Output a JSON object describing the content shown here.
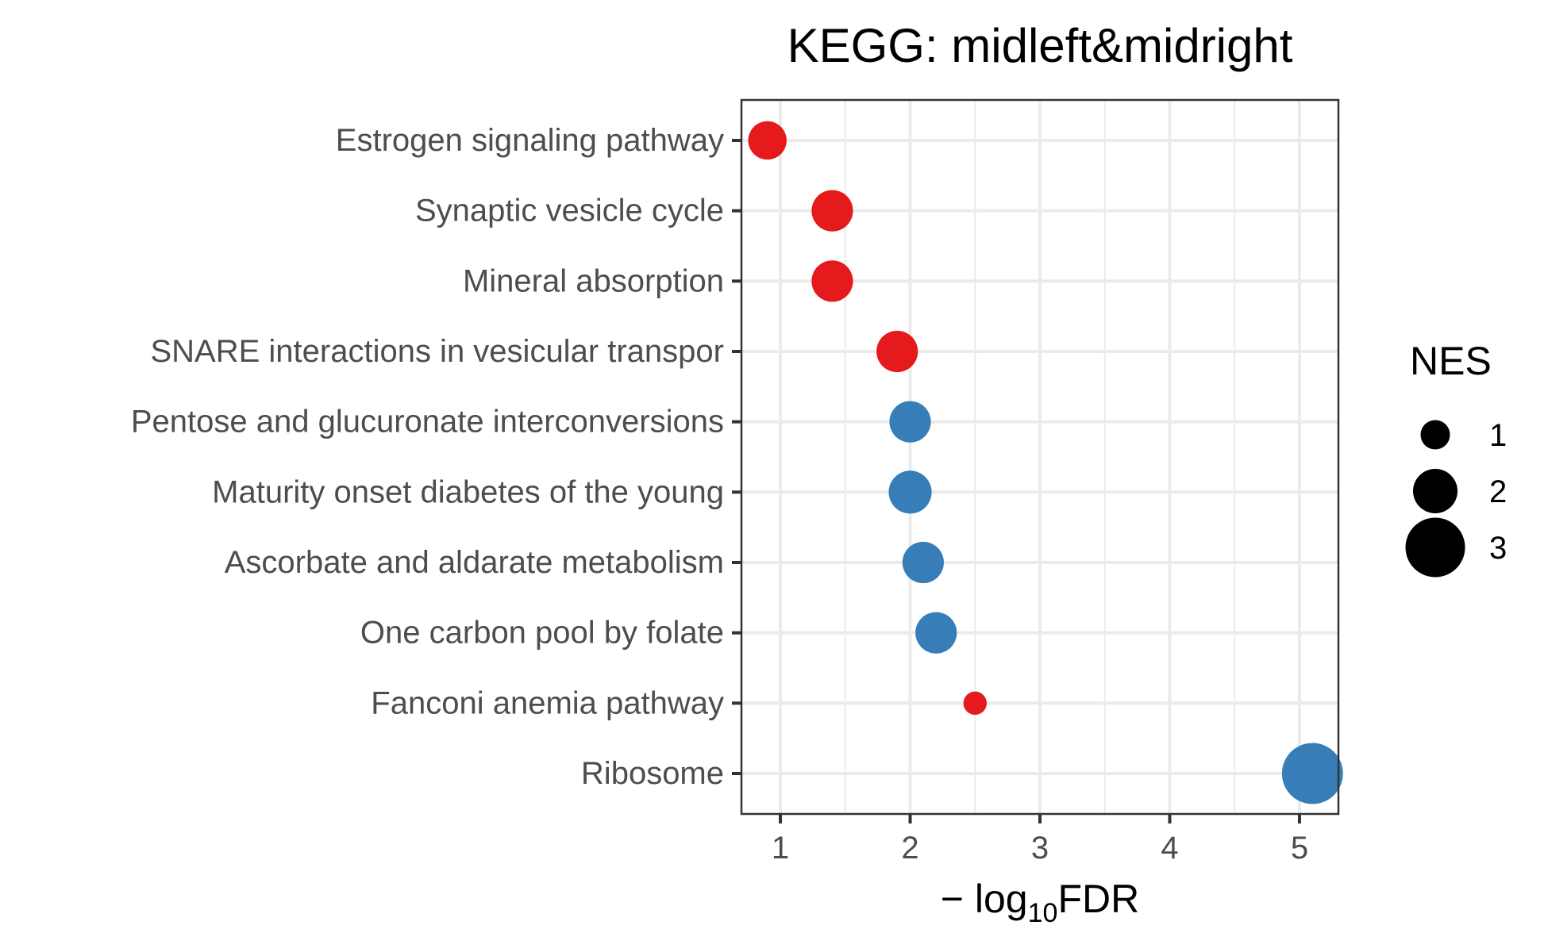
{
  "chart_data": {
    "type": "scatter",
    "title": "KEGG: midleft&midright",
    "xlabel": {
      "prefix": "− log",
      "sub": "10",
      "suffix": "FDR"
    },
    "ylabel": "",
    "xlim": [
      0.7,
      5.3
    ],
    "xticks": [
      1,
      2,
      3,
      4,
      5
    ],
    "grid": true,
    "legend": {
      "title": "NES",
      "position": "right",
      "entries": [
        {
          "label": "1",
          "nes": 1
        },
        {
          "label": "2",
          "nes": 2
        },
        {
          "label": "3",
          "nes": 3
        }
      ]
    },
    "colors": {
      "positive": "#E41A1C",
      "negative": "#377EB8"
    },
    "points": [
      {
        "category": "Estrogen signaling pathway",
        "x": 0.9,
        "nes": 1.6,
        "color": "#E41A1C"
      },
      {
        "category": "Synaptic vesicle cycle",
        "x": 1.4,
        "nes": 1.8,
        "color": "#E41A1C"
      },
      {
        "category": "Mineral absorption",
        "x": 1.4,
        "nes": 1.8,
        "color": "#E41A1C"
      },
      {
        "category": "SNARE interactions in vesicular transpor",
        "x": 1.9,
        "nes": 1.8,
        "color": "#E41A1C"
      },
      {
        "category": "Pentose and glucuronate interconversions",
        "x": 2.0,
        "nes": 1.8,
        "color": "#377EB8"
      },
      {
        "category": "Maturity onset diabetes of the young",
        "x": 2.0,
        "nes": 1.9,
        "color": "#377EB8"
      },
      {
        "category": "Ascorbate and aldarate metabolism",
        "x": 2.1,
        "nes": 1.8,
        "color": "#377EB8"
      },
      {
        "category": "One carbon pool by folate",
        "x": 2.2,
        "nes": 1.8,
        "color": "#377EB8"
      },
      {
        "category": "Fanconi anemia pathway",
        "x": 2.5,
        "nes": 0.6,
        "color": "#E41A1C"
      },
      {
        "category": "Ribosome",
        "x": 5.1,
        "nes": 3.1,
        "color": "#377EB8"
      }
    ]
  }
}
